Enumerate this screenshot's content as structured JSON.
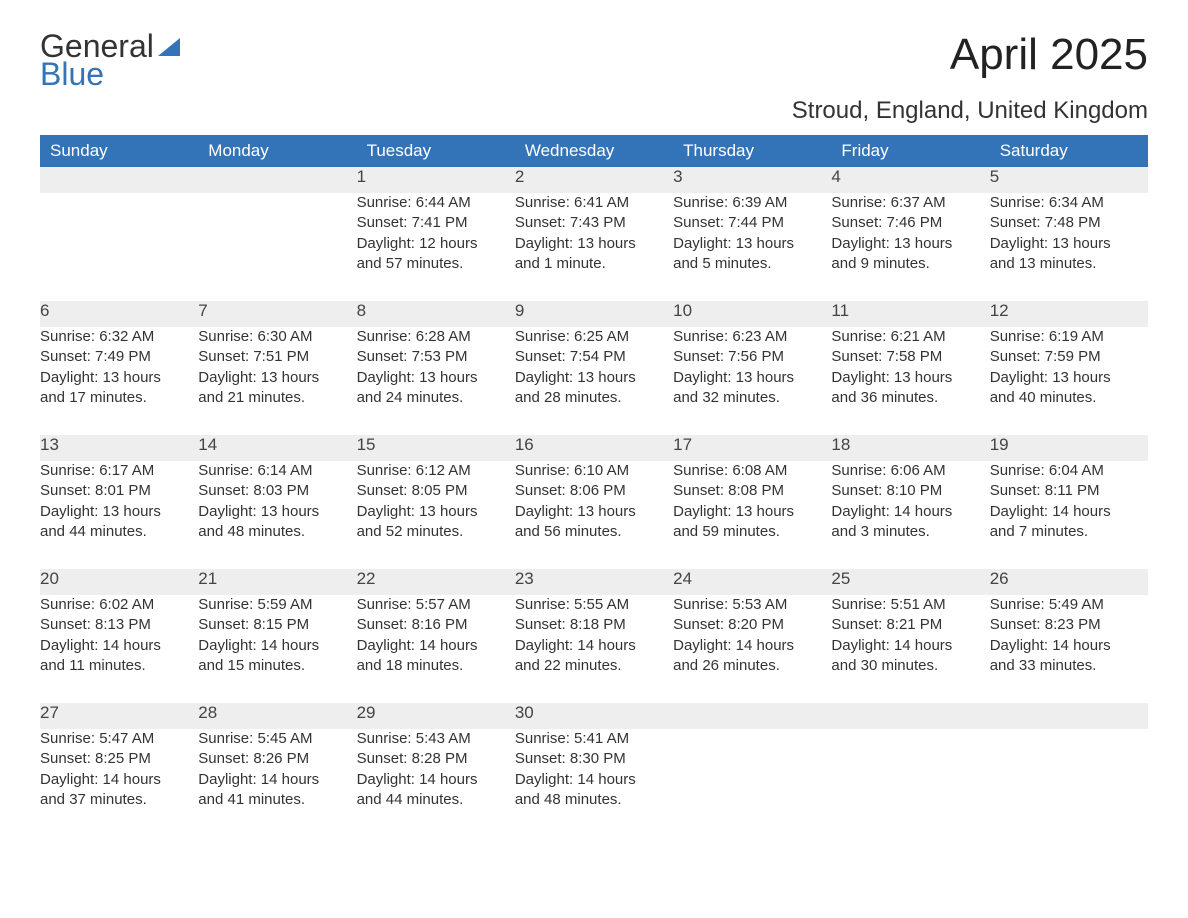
{
  "logo": {
    "line1": "General",
    "line2": "Blue"
  },
  "title": "April 2025",
  "location": "Stroud, England, United Kingdom",
  "colors": {
    "accent": "#3374b9",
    "header_bg": "#3374b9",
    "header_fg": "#ffffff",
    "stripe": "#eeeeee",
    "text": "#333333"
  },
  "day_names": [
    "Sunday",
    "Monday",
    "Tuesday",
    "Wednesday",
    "Thursday",
    "Friday",
    "Saturday"
  ],
  "weeks": [
    [
      null,
      null,
      {
        "n": "1",
        "sunrise": "Sunrise: 6:44 AM",
        "sunset": "Sunset: 7:41 PM",
        "d1": "Daylight: 12 hours",
        "d2": "and 57 minutes."
      },
      {
        "n": "2",
        "sunrise": "Sunrise: 6:41 AM",
        "sunset": "Sunset: 7:43 PM",
        "d1": "Daylight: 13 hours",
        "d2": "and 1 minute."
      },
      {
        "n": "3",
        "sunrise": "Sunrise: 6:39 AM",
        "sunset": "Sunset: 7:44 PM",
        "d1": "Daylight: 13 hours",
        "d2": "and 5 minutes."
      },
      {
        "n": "4",
        "sunrise": "Sunrise: 6:37 AM",
        "sunset": "Sunset: 7:46 PM",
        "d1": "Daylight: 13 hours",
        "d2": "and 9 minutes."
      },
      {
        "n": "5",
        "sunrise": "Sunrise: 6:34 AM",
        "sunset": "Sunset: 7:48 PM",
        "d1": "Daylight: 13 hours",
        "d2": "and 13 minutes."
      }
    ],
    [
      {
        "n": "6",
        "sunrise": "Sunrise: 6:32 AM",
        "sunset": "Sunset: 7:49 PM",
        "d1": "Daylight: 13 hours",
        "d2": "and 17 minutes."
      },
      {
        "n": "7",
        "sunrise": "Sunrise: 6:30 AM",
        "sunset": "Sunset: 7:51 PM",
        "d1": "Daylight: 13 hours",
        "d2": "and 21 minutes."
      },
      {
        "n": "8",
        "sunrise": "Sunrise: 6:28 AM",
        "sunset": "Sunset: 7:53 PM",
        "d1": "Daylight: 13 hours",
        "d2": "and 24 minutes."
      },
      {
        "n": "9",
        "sunrise": "Sunrise: 6:25 AM",
        "sunset": "Sunset: 7:54 PM",
        "d1": "Daylight: 13 hours",
        "d2": "and 28 minutes."
      },
      {
        "n": "10",
        "sunrise": "Sunrise: 6:23 AM",
        "sunset": "Sunset: 7:56 PM",
        "d1": "Daylight: 13 hours",
        "d2": "and 32 minutes."
      },
      {
        "n": "11",
        "sunrise": "Sunrise: 6:21 AM",
        "sunset": "Sunset: 7:58 PM",
        "d1": "Daylight: 13 hours",
        "d2": "and 36 minutes."
      },
      {
        "n": "12",
        "sunrise": "Sunrise: 6:19 AM",
        "sunset": "Sunset: 7:59 PM",
        "d1": "Daylight: 13 hours",
        "d2": "and 40 minutes."
      }
    ],
    [
      {
        "n": "13",
        "sunrise": "Sunrise: 6:17 AM",
        "sunset": "Sunset: 8:01 PM",
        "d1": "Daylight: 13 hours",
        "d2": "and 44 minutes."
      },
      {
        "n": "14",
        "sunrise": "Sunrise: 6:14 AM",
        "sunset": "Sunset: 8:03 PM",
        "d1": "Daylight: 13 hours",
        "d2": "and 48 minutes."
      },
      {
        "n": "15",
        "sunrise": "Sunrise: 6:12 AM",
        "sunset": "Sunset: 8:05 PM",
        "d1": "Daylight: 13 hours",
        "d2": "and 52 minutes."
      },
      {
        "n": "16",
        "sunrise": "Sunrise: 6:10 AM",
        "sunset": "Sunset: 8:06 PM",
        "d1": "Daylight: 13 hours",
        "d2": "and 56 minutes."
      },
      {
        "n": "17",
        "sunrise": "Sunrise: 6:08 AM",
        "sunset": "Sunset: 8:08 PM",
        "d1": "Daylight: 13 hours",
        "d2": "and 59 minutes."
      },
      {
        "n": "18",
        "sunrise": "Sunrise: 6:06 AM",
        "sunset": "Sunset: 8:10 PM",
        "d1": "Daylight: 14 hours",
        "d2": "and 3 minutes."
      },
      {
        "n": "19",
        "sunrise": "Sunrise: 6:04 AM",
        "sunset": "Sunset: 8:11 PM",
        "d1": "Daylight: 14 hours",
        "d2": "and 7 minutes."
      }
    ],
    [
      {
        "n": "20",
        "sunrise": "Sunrise: 6:02 AM",
        "sunset": "Sunset: 8:13 PM",
        "d1": "Daylight: 14 hours",
        "d2": "and 11 minutes."
      },
      {
        "n": "21",
        "sunrise": "Sunrise: 5:59 AM",
        "sunset": "Sunset: 8:15 PM",
        "d1": "Daylight: 14 hours",
        "d2": "and 15 minutes."
      },
      {
        "n": "22",
        "sunrise": "Sunrise: 5:57 AM",
        "sunset": "Sunset: 8:16 PM",
        "d1": "Daylight: 14 hours",
        "d2": "and 18 minutes."
      },
      {
        "n": "23",
        "sunrise": "Sunrise: 5:55 AM",
        "sunset": "Sunset: 8:18 PM",
        "d1": "Daylight: 14 hours",
        "d2": "and 22 minutes."
      },
      {
        "n": "24",
        "sunrise": "Sunrise: 5:53 AM",
        "sunset": "Sunset: 8:20 PM",
        "d1": "Daylight: 14 hours",
        "d2": "and 26 minutes."
      },
      {
        "n": "25",
        "sunrise": "Sunrise: 5:51 AM",
        "sunset": "Sunset: 8:21 PM",
        "d1": "Daylight: 14 hours",
        "d2": "and 30 minutes."
      },
      {
        "n": "26",
        "sunrise": "Sunrise: 5:49 AM",
        "sunset": "Sunset: 8:23 PM",
        "d1": "Daylight: 14 hours",
        "d2": "and 33 minutes."
      }
    ],
    [
      {
        "n": "27",
        "sunrise": "Sunrise: 5:47 AM",
        "sunset": "Sunset: 8:25 PM",
        "d1": "Daylight: 14 hours",
        "d2": "and 37 minutes."
      },
      {
        "n": "28",
        "sunrise": "Sunrise: 5:45 AM",
        "sunset": "Sunset: 8:26 PM",
        "d1": "Daylight: 14 hours",
        "d2": "and 41 minutes."
      },
      {
        "n": "29",
        "sunrise": "Sunrise: 5:43 AM",
        "sunset": "Sunset: 8:28 PM",
        "d1": "Daylight: 14 hours",
        "d2": "and 44 minutes."
      },
      {
        "n": "30",
        "sunrise": "Sunrise: 5:41 AM",
        "sunset": "Sunset: 8:30 PM",
        "d1": "Daylight: 14 hours",
        "d2": "and 48 minutes."
      },
      null,
      null,
      null
    ]
  ]
}
